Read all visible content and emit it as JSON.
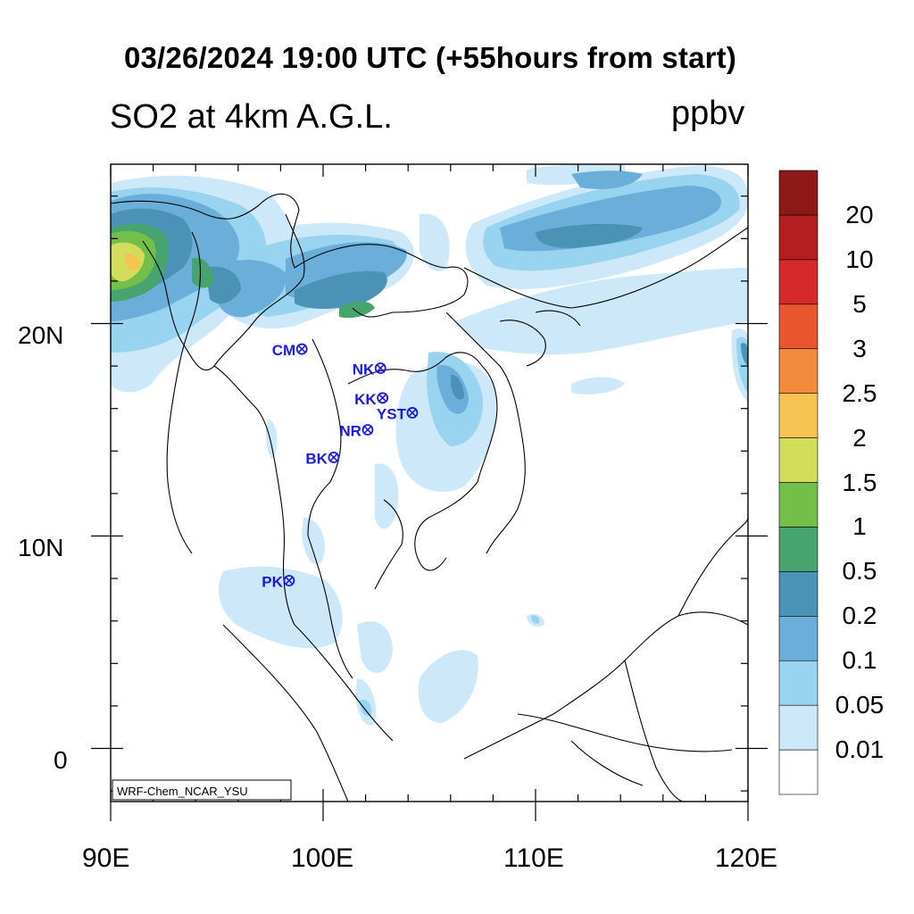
{
  "title": "03/26/2024 19:00 UTC (+55hours from start)",
  "left_subtitle": "SO2 at 4km A.G.L.",
  "units": "ppbv",
  "lat_labels": [
    "20N",
    "10N",
    "0"
  ],
  "lon_labels": [
    "90E",
    "100E",
    "110E",
    "120E"
  ],
  "credit": "WRF-Chem_NCAR_YSU",
  "stations": [
    {
      "name": "CM",
      "lon": 99.0,
      "lat": 18.8
    },
    {
      "name": "NK",
      "lon": 102.7,
      "lat": 17.9
    },
    {
      "name": "KK",
      "lon": 102.8,
      "lat": 16.5
    },
    {
      "name": "YST",
      "lon": 104.2,
      "lat": 15.8
    },
    {
      "name": "NR",
      "lon": 102.1,
      "lat": 15.0
    },
    {
      "name": "BK",
      "lon": 100.5,
      "lat": 13.7
    },
    {
      "name": "PK",
      "lon": 98.4,
      "lat": 7.9
    }
  ],
  "colorbar": {
    "levels": [
      "0.01",
      "0.05",
      "0.1",
      "0.2",
      "0.5",
      "1",
      "1.5",
      "2",
      "2.5",
      "3",
      "5",
      "10",
      "20"
    ],
    "colors": [
      "#ffffff",
      "#cde8f8",
      "#98d3ef",
      "#6aaed9",
      "#4a93b6",
      "#48a46e",
      "#74bf4a",
      "#d2dd5a",
      "#f6c452",
      "#f28b3c",
      "#e8552f",
      "#d62a2a",
      "#b41e1e",
      "#8e1818"
    ]
  }
}
